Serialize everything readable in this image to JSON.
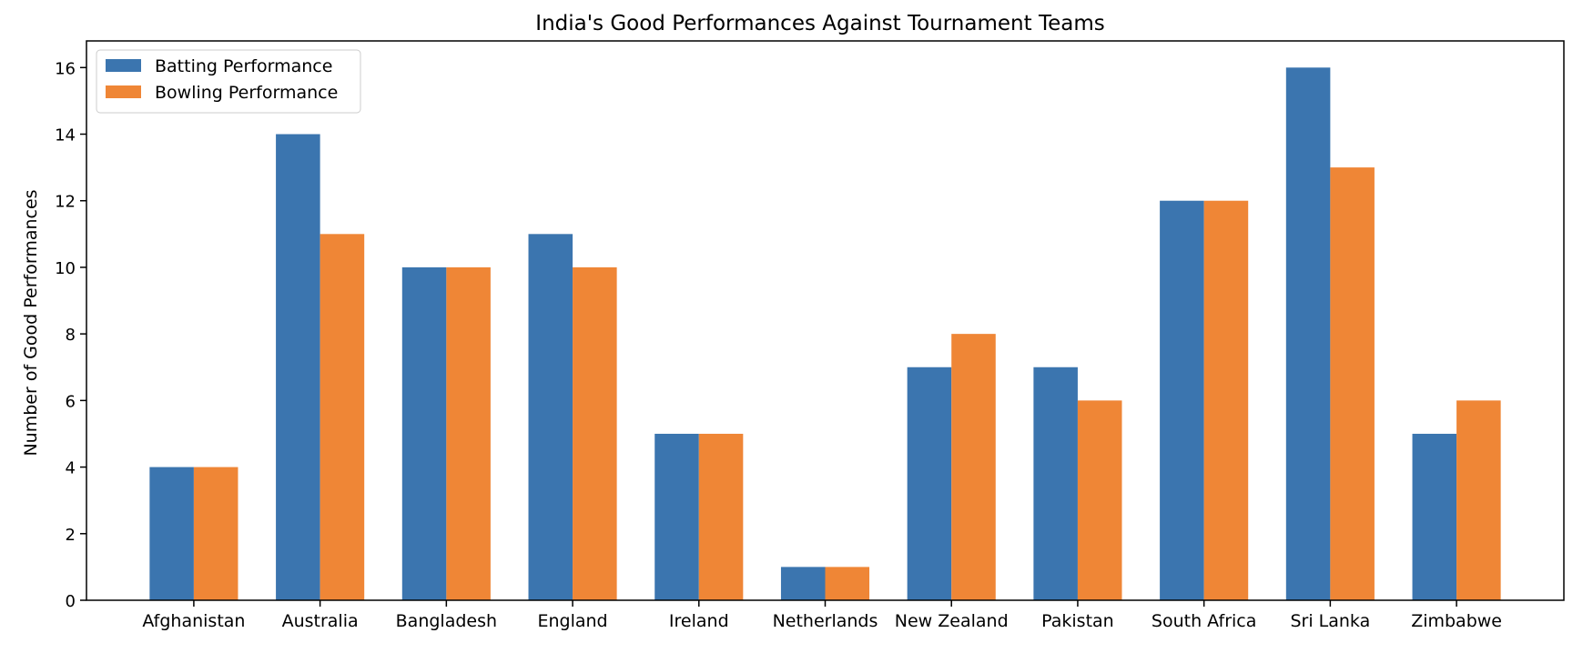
{
  "chart_data": {
    "type": "bar",
    "title": "India's Good Performances Against Tournament Teams",
    "xlabel": "",
    "ylabel": "Number of Good Performances",
    "categories": [
      "Afghanistan",
      "Australia",
      "Bangladesh",
      "England",
      "Ireland",
      "Netherlands",
      "New Zealand",
      "Pakistan",
      "South Africa",
      "Sri Lanka",
      "Zimbabwe"
    ],
    "series": [
      {
        "name": "Batting Performance",
        "color": "#3b75af",
        "values": [
          4,
          14,
          10,
          11,
          5,
          1,
          7,
          7,
          12,
          16,
          5
        ]
      },
      {
        "name": "Bowling Performance",
        "color": "#ef8636",
        "values": [
          4,
          11,
          10,
          10,
          5,
          1,
          8,
          6,
          12,
          13,
          6
        ]
      }
    ],
    "ylim": [
      0,
      16.8
    ],
    "yticks": [
      0,
      2,
      4,
      6,
      8,
      10,
      12,
      14,
      16
    ],
    "grid": false,
    "legend_position": "top-left"
  }
}
